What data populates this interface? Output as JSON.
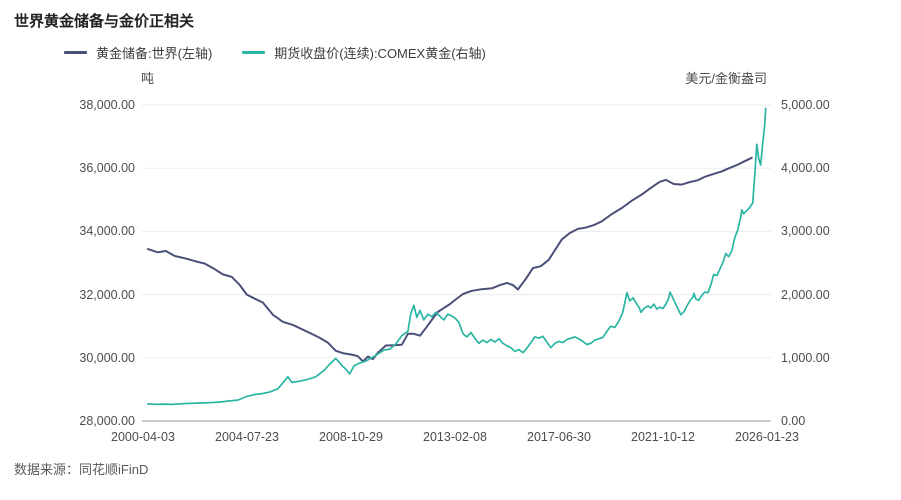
{
  "title": "世界黄金储备与金价正相关",
  "source": "数据来源：同花顺iFinD",
  "legend": [
    {
      "label": "黄金储备:世界(左轴)",
      "color": "#4a5078"
    },
    {
      "label": "期货收盘价(连续):COMEX黄金(右轴)",
      "color": "#2bb5a3"
    }
  ],
  "chart_data": {
    "type": "line",
    "title": "世界黄金储备与金价正相关",
    "grid_color": "#ebebeb",
    "axis_line_color": "#999999",
    "x_axis": {
      "range_years": [
        2000.256,
        2026.063
      ],
      "tick_labels": [
        "2000-04-03",
        "2004-07-23",
        "2008-10-29",
        "2013-02-08",
        "2017-06-30",
        "2021-10-12",
        "2026-01-23"
      ]
    },
    "left_axis": {
      "label": "吨",
      "min": 28000,
      "max": 38000,
      "tick_labels": [
        "38,000.00",
        "36,000.00",
        "34,000.00",
        "32,000.00",
        "30,000.00",
        "28,000.00"
      ]
    },
    "right_axis": {
      "label": "美元/金衡盎司",
      "min": 0,
      "max": 5000,
      "tick_labels": [
        "5,000.00",
        "4,000.00",
        "3,000.00",
        "2,000.00",
        "1,000.00",
        "0.00"
      ]
    },
    "series": [
      {
        "name": "黄金储备:世界(左轴)",
        "axis": "left",
        "color": "#4a5078",
        "width": 2,
        "points": [
          [
            2000.46,
            33440
          ],
          [
            2000.87,
            33340
          ],
          [
            2001.2,
            33380
          ],
          [
            2001.57,
            33220
          ],
          [
            2001.99,
            33150
          ],
          [
            2002.4,
            33060
          ],
          [
            2002.81,
            32980
          ],
          [
            2003.23,
            32800
          ],
          [
            2003.56,
            32640
          ],
          [
            2003.93,
            32560
          ],
          [
            2004.26,
            32300
          ],
          [
            2004.55,
            32000
          ],
          [
            2004.88,
            31870
          ],
          [
            2005.21,
            31750
          ],
          [
            2005.63,
            31360
          ],
          [
            2006.04,
            31140
          ],
          [
            2006.45,
            31040
          ],
          [
            2006.87,
            30890
          ],
          [
            2007.28,
            30740
          ],
          [
            2007.57,
            30630
          ],
          [
            2007.9,
            30480
          ],
          [
            2008.23,
            30220
          ],
          [
            2008.56,
            30140
          ],
          [
            2008.89,
            30100
          ],
          [
            2009.14,
            30050
          ],
          [
            2009.35,
            29890
          ],
          [
            2009.56,
            30040
          ],
          [
            2009.76,
            29960
          ],
          [
            2009.97,
            30160
          ],
          [
            2010.3,
            30390
          ],
          [
            2010.63,
            30400
          ],
          [
            2010.96,
            30410
          ],
          [
            2011.21,
            30760
          ],
          [
            2011.46,
            30760
          ],
          [
            2011.71,
            30700
          ],
          [
            2011.96,
            30950
          ],
          [
            2012.2,
            31200
          ],
          [
            2012.45,
            31450
          ],
          [
            2012.7,
            31580
          ],
          [
            2012.95,
            31700
          ],
          [
            2013.16,
            31830
          ],
          [
            2013.49,
            32020
          ],
          [
            2013.86,
            32120
          ],
          [
            2014.27,
            32170
          ],
          [
            2014.69,
            32200
          ],
          [
            2015.02,
            32300
          ],
          [
            2015.31,
            32370
          ],
          [
            2015.56,
            32300
          ],
          [
            2015.76,
            32160
          ],
          [
            2016.09,
            32500
          ],
          [
            2016.38,
            32840
          ],
          [
            2016.71,
            32900
          ],
          [
            2017.04,
            33100
          ],
          [
            2017.33,
            33450
          ],
          [
            2017.58,
            33750
          ],
          [
            2017.91,
            33950
          ],
          [
            2018.24,
            34080
          ],
          [
            2018.57,
            34120
          ],
          [
            2018.9,
            34200
          ],
          [
            2019.23,
            34320
          ],
          [
            2019.65,
            34550
          ],
          [
            2020.06,
            34740
          ],
          [
            2020.47,
            34970
          ],
          [
            2020.89,
            35170
          ],
          [
            2021.3,
            35400
          ],
          [
            2021.63,
            35570
          ],
          [
            2021.88,
            35630
          ],
          [
            2022.21,
            35500
          ],
          [
            2022.54,
            35480
          ],
          [
            2022.87,
            35560
          ],
          [
            2023.2,
            35620
          ],
          [
            2023.53,
            35740
          ],
          [
            2023.86,
            35820
          ],
          [
            2024.19,
            35900
          ],
          [
            2024.52,
            36010
          ],
          [
            2024.85,
            36110
          ],
          [
            2025.14,
            36220
          ],
          [
            2025.43,
            36330
          ]
        ]
      },
      {
        "name": "期货收盘价(连续):COMEX黄金(右轴)",
        "axis": "right",
        "color": "#2bb5a3",
        "width": 1.7,
        "points": [
          [
            2000.46,
            270
          ],
          [
            2000.79,
            265
          ],
          [
            2001.12,
            268
          ],
          [
            2001.45,
            262
          ],
          [
            2001.78,
            272
          ],
          [
            2002.19,
            278
          ],
          [
            2002.61,
            285
          ],
          [
            2003.02,
            290
          ],
          [
            2003.44,
            300
          ],
          [
            2003.85,
            318
          ],
          [
            2004.18,
            330
          ],
          [
            2004.55,
            390
          ],
          [
            2004.88,
            420
          ],
          [
            2005.21,
            435
          ],
          [
            2005.5,
            460
          ],
          [
            2005.83,
            510
          ],
          [
            2006.08,
            620
          ],
          [
            2006.25,
            700
          ],
          [
            2006.41,
            610
          ],
          [
            2006.74,
            630
          ],
          [
            2007.07,
            660
          ],
          [
            2007.4,
            700
          ],
          [
            2007.74,
            800
          ],
          [
            2007.98,
            900
          ],
          [
            2008.23,
            990
          ],
          [
            2008.48,
            880
          ],
          [
            2008.69,
            800
          ],
          [
            2008.81,
            745
          ],
          [
            2008.98,
            870
          ],
          [
            2009.23,
            920
          ],
          [
            2009.47,
            950
          ],
          [
            2009.72,
            1000
          ],
          [
            2009.97,
            1060
          ],
          [
            2010.22,
            1120
          ],
          [
            2010.47,
            1140
          ],
          [
            2010.71,
            1220
          ],
          [
            2010.96,
            1350
          ],
          [
            2011.21,
            1420
          ],
          [
            2011.33,
            1700
          ],
          [
            2011.46,
            1830
          ],
          [
            2011.58,
            1640
          ],
          [
            2011.71,
            1750
          ],
          [
            2011.87,
            1600
          ],
          [
            2012.04,
            1690
          ],
          [
            2012.2,
            1650
          ],
          [
            2012.37,
            1720
          ],
          [
            2012.53,
            1660
          ],
          [
            2012.7,
            1600
          ],
          [
            2012.86,
            1690
          ],
          [
            2013.03,
            1660
          ],
          [
            2013.16,
            1630
          ],
          [
            2013.32,
            1560
          ],
          [
            2013.49,
            1380
          ],
          [
            2013.65,
            1330
          ],
          [
            2013.82,
            1400
          ],
          [
            2013.98,
            1310
          ],
          [
            2014.15,
            1230
          ],
          [
            2014.31,
            1280
          ],
          [
            2014.48,
            1240
          ],
          [
            2014.64,
            1290
          ],
          [
            2014.81,
            1250
          ],
          [
            2014.98,
            1300
          ],
          [
            2015.14,
            1230
          ],
          [
            2015.31,
            1190
          ],
          [
            2015.47,
            1160
          ],
          [
            2015.64,
            1100
          ],
          [
            2015.8,
            1130
          ],
          [
            2015.97,
            1080
          ],
          [
            2016.13,
            1150
          ],
          [
            2016.3,
            1240
          ],
          [
            2016.46,
            1330
          ],
          [
            2016.63,
            1310
          ],
          [
            2016.79,
            1340
          ],
          [
            2016.96,
            1250
          ],
          [
            2017.12,
            1160
          ],
          [
            2017.29,
            1230
          ],
          [
            2017.45,
            1260
          ],
          [
            2017.62,
            1240
          ],
          [
            2017.79,
            1290
          ],
          [
            2017.95,
            1310
          ],
          [
            2018.12,
            1330
          ],
          [
            2018.28,
            1300
          ],
          [
            2018.45,
            1260
          ],
          [
            2018.61,
            1210
          ],
          [
            2018.78,
            1230
          ],
          [
            2018.94,
            1280
          ],
          [
            2019.11,
            1300
          ],
          [
            2019.27,
            1320
          ],
          [
            2019.44,
            1420
          ],
          [
            2019.6,
            1500
          ],
          [
            2019.77,
            1480
          ],
          [
            2019.94,
            1580
          ],
          [
            2020.1,
            1720
          ],
          [
            2020.27,
            2030
          ],
          [
            2020.39,
            1900
          ],
          [
            2020.52,
            1950
          ],
          [
            2020.64,
            1870
          ],
          [
            2020.77,
            1800
          ],
          [
            2020.85,
            1720
          ],
          [
            2020.97,
            1780
          ],
          [
            2021.14,
            1820
          ],
          [
            2021.26,
            1790
          ],
          [
            2021.38,
            1850
          ],
          [
            2021.51,
            1770
          ],
          [
            2021.63,
            1800
          ],
          [
            2021.76,
            1780
          ],
          [
            2021.88,
            1850
          ],
          [
            2022.0,
            1950
          ],
          [
            2022.05,
            2040
          ],
          [
            2022.13,
            1980
          ],
          [
            2022.25,
            1880
          ],
          [
            2022.38,
            1780
          ],
          [
            2022.5,
            1680
          ],
          [
            2022.63,
            1730
          ],
          [
            2022.75,
            1820
          ],
          [
            2022.87,
            1900
          ],
          [
            2023.0,
            1960
          ],
          [
            2023.04,
            2020
          ],
          [
            2023.12,
            1930
          ],
          [
            2023.24,
            1910
          ],
          [
            2023.37,
            1990
          ],
          [
            2023.49,
            2040
          ],
          [
            2023.62,
            2030
          ],
          [
            2023.74,
            2150
          ],
          [
            2023.86,
            2320
          ],
          [
            2023.99,
            2300
          ],
          [
            2024.11,
            2400
          ],
          [
            2024.23,
            2500
          ],
          [
            2024.36,
            2650
          ],
          [
            2024.48,
            2600
          ],
          [
            2024.61,
            2700
          ],
          [
            2024.73,
            2900
          ],
          [
            2024.85,
            3020
          ],
          [
            2024.98,
            3230
          ],
          [
            2025.02,
            3340
          ],
          [
            2025.1,
            3280
          ],
          [
            2025.23,
            3330
          ],
          [
            2025.35,
            3380
          ],
          [
            2025.47,
            3450
          ],
          [
            2025.56,
            3900
          ],
          [
            2025.64,
            4380
          ],
          [
            2025.72,
            4150
          ],
          [
            2025.8,
            4050
          ],
          [
            2025.89,
            4400
          ],
          [
            2025.97,
            4700
          ],
          [
            2026.01,
            4950
          ]
        ]
      }
    ]
  }
}
